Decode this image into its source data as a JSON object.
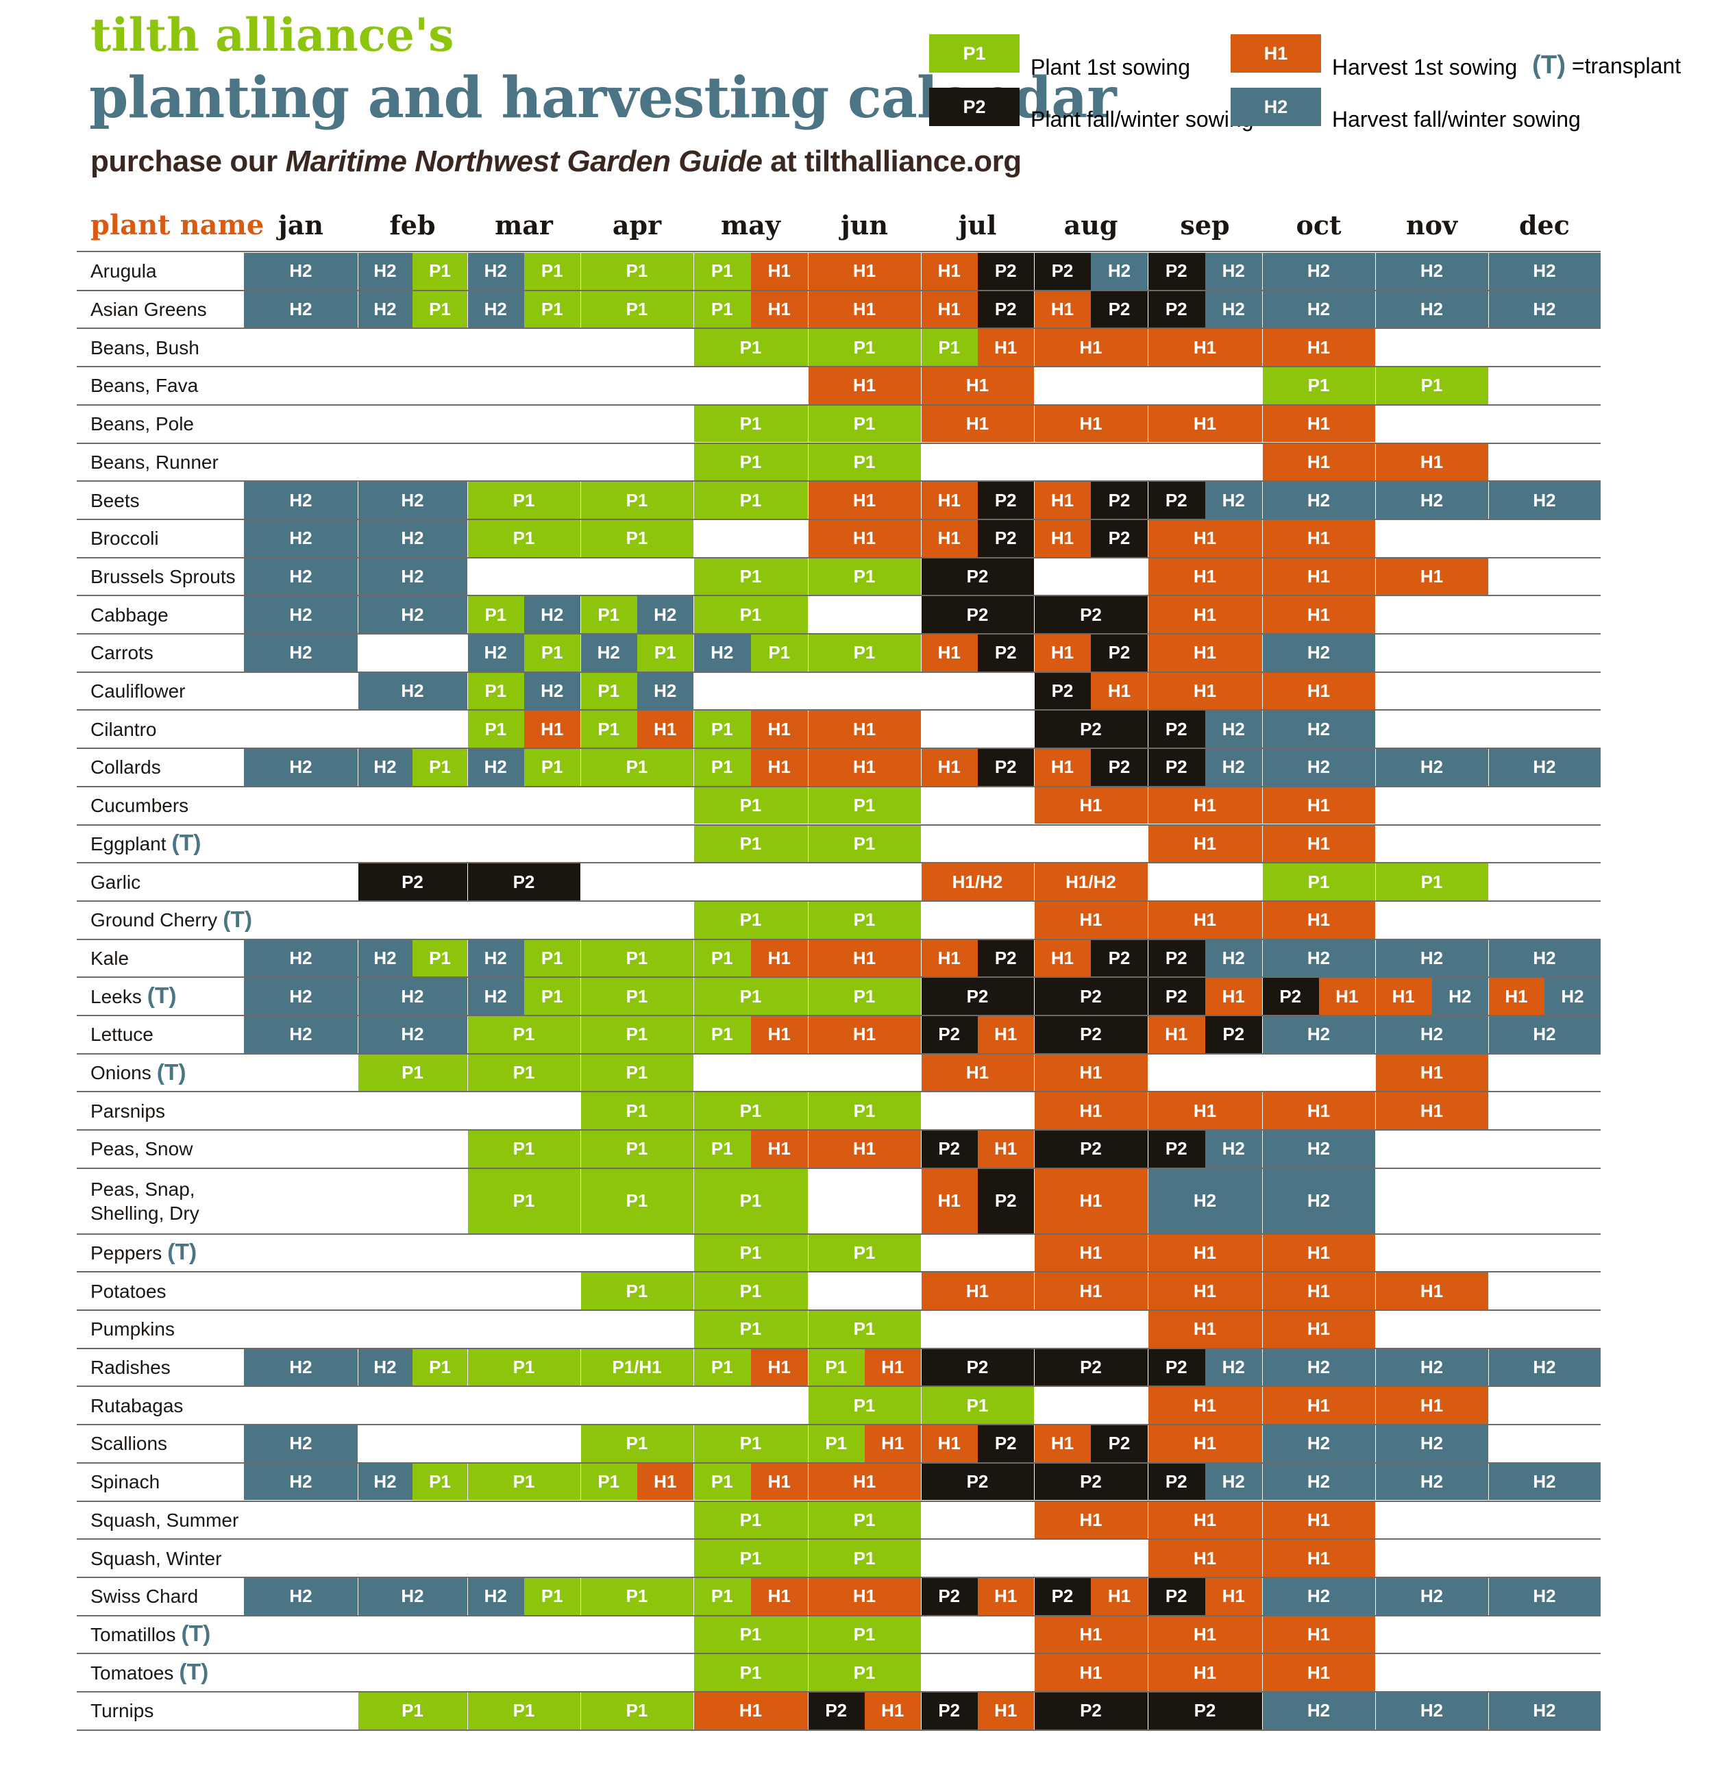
{
  "header": {
    "pre_title": "tilth alliance's",
    "title": "planting and harvesting calendar",
    "purchase_prefix": "purchase our ",
    "purchase_book": "Maritime Northwest Garden Guide",
    "purchase_suffix": " at tilthalliance.org"
  },
  "legend": {
    "items": [
      {
        "code": "P1",
        "label": "Plant 1st sowing"
      },
      {
        "code": "P2",
        "label": "Plant fall/winter sowing"
      },
      {
        "code": "H1",
        "label": "Harvest 1st sowing"
      },
      {
        "code": "H2",
        "label": "Harvest fall/winter sowing"
      }
    ],
    "transplant_mark": "(T)",
    "transplant_label": "=transplant"
  },
  "colors": {
    "P1": "#8dc40c",
    "P2": "#1b1510",
    "H1": "#d95b12",
    "H2": "#4b7484",
    "title": "#4b7484",
    "pre_title": "#8dc40c",
    "plant_name_header": "#d95b12",
    "purchase": "#3a2820",
    "rule": "#6f6a66"
  },
  "table": {
    "plant_name_header": "plant name",
    "months": [
      "jan",
      "feb",
      "mar",
      "apr",
      "may",
      "jun",
      "jul",
      "aug",
      "sep",
      "oct",
      "nov",
      "dec"
    ],
    "rows": [
      {
        "name": "Arugula",
        "cells": [
          "H2",
          "H2|P1",
          "H2|P1",
          "P1",
          "P1|H1",
          "H1",
          "H1|P2",
          "P2|H2",
          "P2|H2",
          "H2",
          "H2",
          "H2"
        ]
      },
      {
        "name": "Asian Greens",
        "cells": [
          "H2",
          "H2|P1",
          "H2|P1",
          "P1",
          "P1|H1",
          "H1",
          "H1|P2",
          "H1|P2",
          "P2|H2",
          "H2",
          "H2",
          "H2"
        ]
      },
      {
        "name": "Beans, Bush",
        "cells": [
          "",
          "",
          "",
          "",
          "P1",
          "P1",
          "P1|H1",
          "H1",
          "H1",
          "H1",
          "",
          ""
        ]
      },
      {
        "name": "Beans, Fava",
        "cells": [
          "",
          "",
          "",
          "",
          "",
          "H1",
          "H1",
          "",
          "",
          "P1",
          "P1",
          ""
        ]
      },
      {
        "name": "Beans, Pole",
        "cells": [
          "",
          "",
          "",
          "",
          "P1",
          "P1",
          "H1",
          "H1",
          "H1",
          "H1",
          "",
          ""
        ]
      },
      {
        "name": "Beans,  Runner",
        "cells": [
          "",
          "",
          "",
          "",
          "P1",
          "P1",
          "",
          "",
          "",
          "H1",
          "H1",
          ""
        ]
      },
      {
        "name": "Beets",
        "cells": [
          "H2",
          "H2",
          "P1",
          "P1",
          "P1",
          "H1",
          "H1|P2",
          "H1|P2",
          "P2|H2",
          "H2",
          "H2",
          "H2"
        ]
      },
      {
        "name": "Broccoli",
        "cells": [
          "H2",
          "H2",
          "P1",
          "P1",
          "",
          "H1",
          "H1|P2",
          "H1|P2",
          "H1",
          "H1",
          "",
          ""
        ]
      },
      {
        "name": "Brussels Sprouts",
        "cells": [
          "H2",
          "H2",
          "",
          "",
          "P1",
          "P1",
          "P2",
          "",
          "H1",
          "H1",
          "H1",
          ""
        ]
      },
      {
        "name": "Cabbage",
        "cells": [
          "H2",
          "H2",
          "P1|H2",
          "P1|H2",
          "P1",
          "",
          "P2",
          "P2",
          "H1",
          "H1",
          "",
          ""
        ]
      },
      {
        "name": "Carrots",
        "cells": [
          "H2",
          "",
          "H2|P1",
          "H2|P1",
          "H2|P1",
          "P1",
          "H1|P2",
          "H1|P2",
          "H1",
          "H2",
          "",
          ""
        ]
      },
      {
        "name": "Cauliflower",
        "cells": [
          "",
          "H2",
          "P1|H2",
          "P1|H2",
          "",
          "",
          "",
          "P2|H1",
          "H1",
          "H1",
          "",
          ""
        ]
      },
      {
        "name": "Cilantro",
        "cells": [
          "",
          "",
          "P1|H1",
          "P1|H1",
          "P1|H1",
          "H1",
          "",
          "P2",
          "P2|H2",
          "H2",
          "",
          ""
        ]
      },
      {
        "name": "Collards",
        "cells": [
          "H2",
          "H2|P1",
          "H2|P1",
          "P1",
          "P1|H1",
          "H1",
          "H1|P2",
          "H1|P2",
          "P2|H2",
          "H2",
          "H2",
          "H2"
        ]
      },
      {
        "name": "Cucumbers",
        "cells": [
          "",
          "",
          "",
          "",
          "P1",
          "P1",
          "",
          "H1",
          "H1",
          "H1",
          "",
          ""
        ]
      },
      {
        "name": "Eggplant",
        "t": "(T)",
        "cells": [
          "",
          "",
          "",
          "",
          "P1",
          "P1",
          "",
          "",
          "H1",
          "H1",
          "",
          ""
        ]
      },
      {
        "name": "Garlic",
        "cells": [
          "",
          "P2",
          "P2",
          "",
          "",
          "",
          "H1/H2",
          "H1/H2",
          "",
          "P1",
          "P1",
          ""
        ]
      },
      {
        "name": "Ground Cherry",
        "t": "(T)",
        "cells": [
          "",
          "",
          "",
          "",
          "P1",
          "P1",
          "",
          "H1",
          "H1",
          "H1",
          "",
          ""
        ]
      },
      {
        "name": "Kale",
        "cells": [
          "H2",
          "H2|P1",
          "H2|P1",
          "P1",
          "P1|H1",
          "H1",
          "H1|P2",
          "H1|P2",
          "P2|H2",
          "H2",
          "H2",
          "H2"
        ]
      },
      {
        "name": "Leeks",
        "t": "(T)",
        "cells": [
          "H2",
          "H2",
          "H2|P1",
          "P1",
          "P1",
          "P1",
          "P2",
          "P2",
          "P2|H1",
          "P2|H1",
          "H1|H2",
          "H1|H2"
        ]
      },
      {
        "name": "Lettuce",
        "cells": [
          "H2",
          "H2",
          "P1",
          "P1",
          "P1|H1",
          "H1",
          "P2|H1",
          "P2",
          "H1|P2",
          "H2",
          "H2",
          "H2"
        ]
      },
      {
        "name": "Onions",
        "t": "(T)",
        "cells": [
          "",
          "P1",
          "P1",
          "P1",
          "",
          "",
          "H1",
          "H1",
          "",
          "",
          "H1",
          ""
        ]
      },
      {
        "name": "Parsnips",
        "cells": [
          "",
          "",
          "",
          "P1",
          "P1",
          "P1",
          "",
          "H1",
          "H1",
          "H1",
          "H1",
          ""
        ]
      },
      {
        "name": "Peas, Snow",
        "cells": [
          "",
          "",
          "P1",
          "P1",
          "P1|H1",
          "H1",
          "P2|H1",
          "P2",
          "P2|H2",
          "H2",
          "",
          ""
        ]
      },
      {
        "name": "Peas, Snap,\nShelling, Dry",
        "tall": true,
        "cells": [
          "",
          "",
          "P1",
          "P1",
          "P1",
          "",
          "H1|P2",
          "H1",
          "H2",
          "H2",
          "",
          ""
        ]
      },
      {
        "name": "Peppers",
        "t": "(T)",
        "cells": [
          "",
          "",
          "",
          "",
          "P1",
          "P1",
          "",
          "H1",
          "H1",
          "H1",
          "",
          ""
        ]
      },
      {
        "name": "Potatoes",
        "cells": [
          "",
          "",
          "",
          "P1",
          "P1",
          "",
          "H1",
          "H1",
          "H1",
          "H1",
          "H1",
          ""
        ]
      },
      {
        "name": "Pumpkins",
        "cells": [
          "",
          "",
          "",
          "",
          "P1",
          "P1",
          "",
          "",
          "H1",
          "H1",
          "",
          ""
        ]
      },
      {
        "name": "Radishes",
        "cells": [
          "H2",
          "H2|P1",
          "P1",
          "P1/H1",
          "P1|H1",
          "P1|H1",
          "P2",
          "P2",
          "P2|H2",
          "H2",
          "H2",
          "H2"
        ]
      },
      {
        "name": "Rutabagas",
        "cells": [
          "",
          "",
          "",
          "",
          "",
          "P1",
          "P1",
          "",
          "H1",
          "H1",
          "H1",
          ""
        ]
      },
      {
        "name": "Scallions",
        "cells": [
          "H2",
          "",
          "",
          "P1",
          "P1",
          "P1|H1",
          "H1|P2",
          "H1|P2",
          "H1",
          "H2",
          "H2",
          ""
        ]
      },
      {
        "name": "Spinach",
        "cells": [
          "H2",
          "H2|P1",
          "P1",
          "P1|H1",
          "P1|H1",
          "H1",
          "P2",
          "P2",
          "P2|H2",
          "H2",
          "H2",
          "H2"
        ]
      },
      {
        "name": "Squash, Summer",
        "cells": [
          "",
          "",
          "",
          "",
          "P1",
          "P1",
          "",
          "H1",
          "H1",
          "H1",
          "",
          ""
        ]
      },
      {
        "name": "Squash, Winter",
        "cells": [
          "",
          "",
          "",
          "",
          "P1",
          "P1",
          "",
          "",
          "H1",
          "H1",
          "",
          ""
        ]
      },
      {
        "name": "Swiss Chard",
        "cells": [
          "H2",
          "H2",
          "H2|P1",
          "P1",
          "P1|H1",
          "H1",
          "P2|H1",
          "P2|H1",
          "P2|H1",
          "H2",
          "H2",
          "H2"
        ]
      },
      {
        "name": "Tomatillos",
        "t": "(T)",
        "cells": [
          "",
          "",
          "",
          "",
          "P1",
          "P1",
          "",
          "H1",
          "H1",
          "H1",
          "",
          ""
        ]
      },
      {
        "name": "Tomatoes",
        "t": "(T)",
        "cells": [
          "",
          "",
          "",
          "",
          "P1",
          "P1",
          "",
          "H1",
          "H1",
          "H1",
          "",
          ""
        ]
      },
      {
        "name": "Turnips",
        "cells": [
          "",
          "P1",
          "P1",
          "P1",
          "H1",
          "P2|H1",
          "P2|H1",
          "P2",
          "P2",
          "H2",
          "H2",
          "H2"
        ]
      }
    ]
  }
}
